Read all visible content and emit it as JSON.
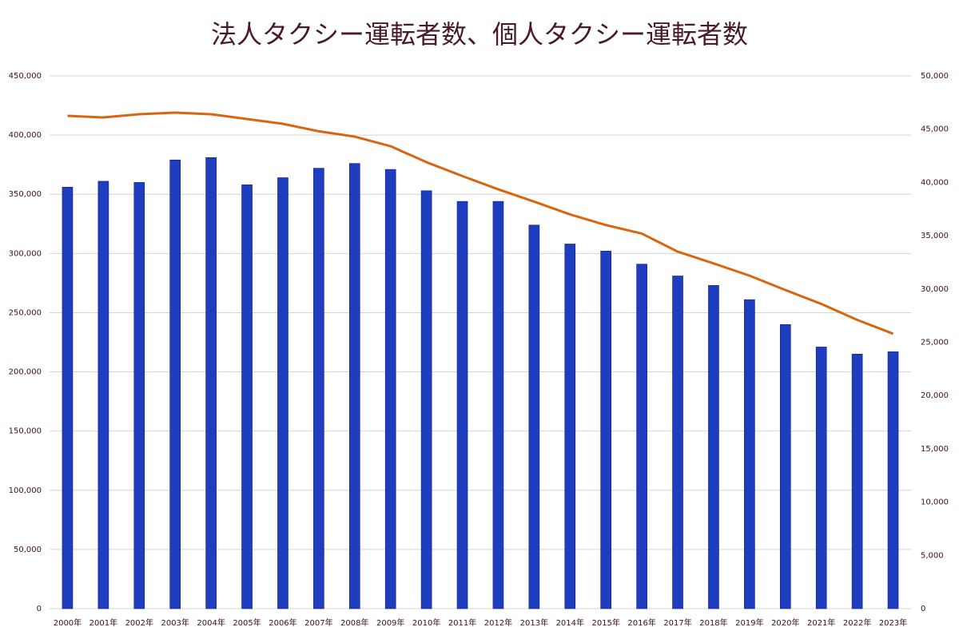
{
  "chart_data": {
    "type": "bar+line",
    "title": "法人タクシー運転者数、個人タクシー運転者数",
    "categories": [
      "2000年",
      "2001年",
      "2002年",
      "2003年",
      "2004年",
      "2005年",
      "2006年",
      "2007年",
      "2008年",
      "2009年",
      "2010年",
      "2011年",
      "2012年",
      "2013年",
      "2014年",
      "2015年",
      "2016年",
      "2017年",
      "2018年",
      "2019年",
      "2020年",
      "2021年",
      "2022年",
      "2023年"
    ],
    "series": [
      {
        "type": "bar",
        "color": "#1f3dbf",
        "values": [
          356000,
          361000,
          360000,
          379000,
          381000,
          358000,
          364000,
          372000,
          376000,
          371000,
          353000,
          344000,
          344000,
          324000,
          308000,
          302000,
          291000,
          281000,
          273000,
          261000,
          240000,
          221000,
          215000,
          217000
        ]
      },
      {
        "type": "line",
        "axis": "y2",
        "color": "#d9650f",
        "values": [
          46250,
          46100,
          46400,
          46550,
          46400,
          45950,
          45500,
          44800,
          44300,
          43400,
          41900,
          40600,
          39350,
          38200,
          37000,
          36000,
          35200,
          33500,
          32400,
          31250,
          29900,
          28600,
          27100,
          25800
        ]
      }
    ],
    "ylim": [
      0,
      450000
    ],
    "yticks": [
      0,
      {
        "value": 50000,
        "label": "50,000"
      },
      {
        "value": 100000,
        "label": "100,000"
      },
      {
        "value": 150000,
        "label": "150,000"
      },
      {
        "value": 200000,
        "label": "200,000"
      },
      {
        "value": 250000,
        "label": "250,000"
      },
      {
        "value": 300000,
        "label": "300,000"
      },
      {
        "value": 350000,
        "label": "350,000"
      },
      {
        "value": 400000,
        "label": "400,000"
      },
      {
        "value": 450000,
        "label": "450,000"
      }
    ],
    "y2lim": [
      0,
      50000
    ],
    "y2ticks": [
      0,
      {
        "value": 5000,
        "label": "5,000"
      },
      {
        "value": 10000,
        "label": "10,000"
      },
      {
        "value": 15000,
        "label": "15,000"
      },
      {
        "value": 20000,
        "label": "20,000"
      },
      {
        "value": 25000,
        "label": "25,000"
      },
      {
        "value": 30000,
        "label": "30,000"
      },
      {
        "value": 35000,
        "label": "35,000"
      },
      {
        "value": 40000,
        "label": "40,000"
      },
      {
        "value": 45000,
        "label": "45,000"
      },
      {
        "value": 50000,
        "label": "50,000"
      }
    ],
    "grid": true
  }
}
